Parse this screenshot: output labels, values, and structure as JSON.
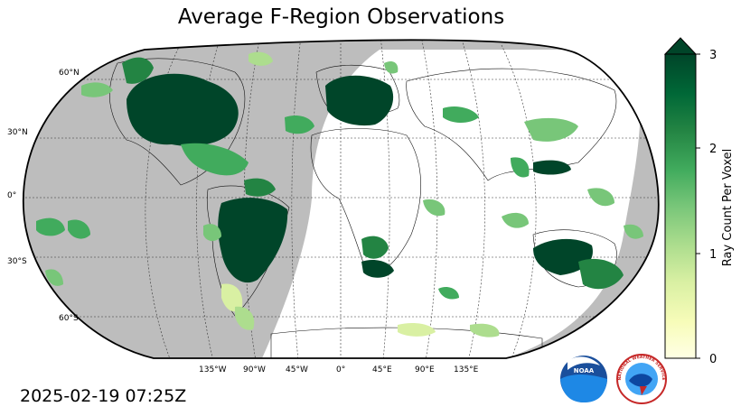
{
  "title": "Average F-Region Observations",
  "timestamp": "2025-02-19 07:25Z",
  "map": {
    "projection": "Robinson",
    "land_color": "#bdbdbd",
    "background": "#ffffff",
    "gridline_style": "dashed",
    "lat_labels": [
      "60°N",
      "30°N",
      "0°",
      "30°S",
      "60°S"
    ],
    "lon_labels": [
      "135°W",
      "90°W",
      "45°W",
      "0°",
      "45°E",
      "90°E",
      "135°E"
    ]
  },
  "colorbar": {
    "label": "Ray Count Per Voxel",
    "ticks": [
      "0",
      "1",
      "2",
      "3"
    ],
    "min": 0,
    "max": 3,
    "extend": "max",
    "colormap": "YlGn",
    "colors": [
      "#ffffe5",
      "#f7fcb9",
      "#d9f0a3",
      "#addd8e",
      "#78c679",
      "#41ab5d",
      "#238443",
      "#006837",
      "#004529"
    ]
  },
  "logos": {
    "noaa": "NOAA",
    "nws": "NATIONAL WEATHER SERVICE"
  }
}
